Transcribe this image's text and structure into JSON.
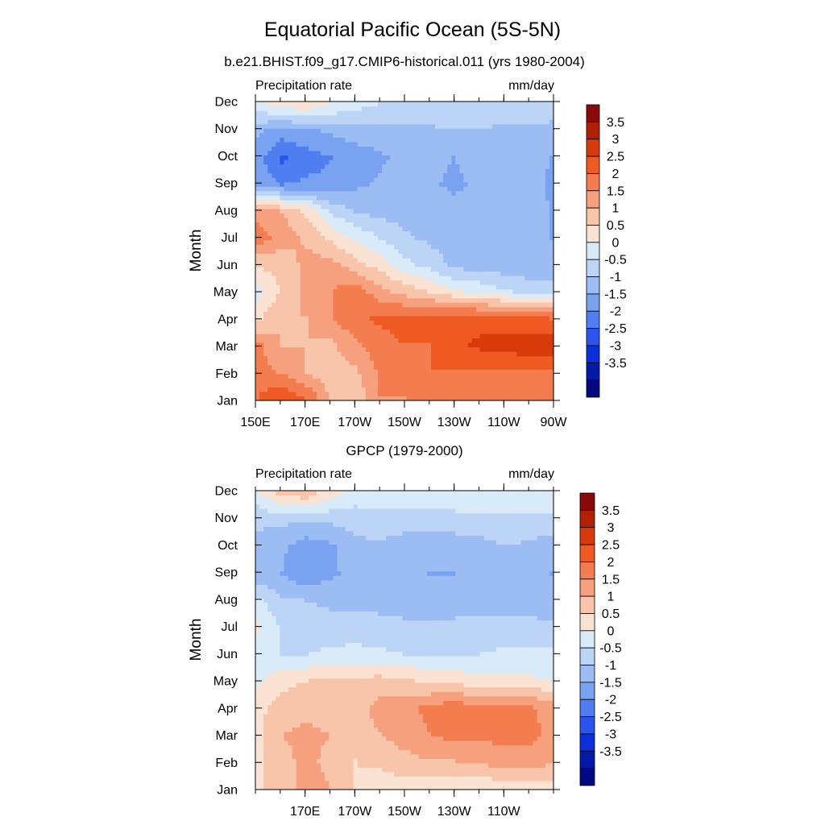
{
  "figure": {
    "title": "Equatorial Pacific Ocean (5S-5N)"
  },
  "colorbar": {
    "tick_labels": [
      "3.5",
      "3",
      "2.5",
      "2",
      "1.5",
      "1",
      "0.5",
      "0",
      "-0.5",
      "-1",
      "-1.5",
      "-2",
      "-2.5",
      "-3",
      "-3.5"
    ],
    "colors": [
      "#8a0a0a",
      "#b32105",
      "#d93a0b",
      "#ef5a22",
      "#f47d4f",
      "#f6a07e",
      "#f8c4aa",
      "#fbe3d3",
      "#d9eaf9",
      "#bcd4f6",
      "#9cbdf4",
      "#79a2f1",
      "#4f7ef0",
      "#2a55ec",
      "#0a2fdb",
      "#031aa8",
      "#010a80"
    ]
  },
  "chart_data": [
    {
      "type": "heatmap",
      "title": "b.e21.BHIST.f09_g17.CMIP6-historical.011 (yrs 1980-2004)",
      "left_label": "Precipitation rate",
      "right_label": "mm/day",
      "ylabel": "Month",
      "y_ticks": [
        "Jan",
        "Feb",
        "Mar",
        "Apr",
        "May",
        "Jun",
        "Jul",
        "Aug",
        "Sep",
        "Oct",
        "Nov",
        "Dec"
      ],
      "x_ticks": [
        "150E",
        "170E",
        "170W",
        "150W",
        "130W",
        "110W",
        "90W"
      ],
      "xlim": [
        150,
        270
      ],
      "x_grid": [
        150,
        160,
        170,
        180,
        190,
        200,
        210,
        220,
        230,
        240,
        250,
        260,
        270
      ],
      "z": [
        [
          2.0,
          2.5,
          2.0,
          1.0,
          0.6,
          1.5,
          1.5,
          1.6,
          1.6,
          1.6,
          1.8,
          1.8,
          1.6
        ],
        [
          1.8,
          1.4,
          1.0,
          0.6,
          0.9,
          1.6,
          2.0,
          2.0,
          2.0,
          2.0,
          2.0,
          2.0,
          2.0
        ],
        [
          1.6,
          1.0,
          1.0,
          0.9,
          1.4,
          1.8,
          2.0,
          2.0,
          2.4,
          2.6,
          2.7,
          2.8,
          2.8
        ],
        [
          0.4,
          1.0,
          1.0,
          1.5,
          1.9,
          2.1,
          2.2,
          2.2,
          2.3,
          2.3,
          2.2,
          2.1,
          2.0
        ],
        [
          -0.2,
          0.6,
          1.2,
          1.5,
          1.8,
          1.2,
          0.8,
          0.5,
          0.1,
          -0.1,
          -0.4,
          -0.6,
          -0.7
        ],
        [
          0.6,
          0.6,
          1.2,
          1.2,
          0.7,
          0.3,
          -0.3,
          -0.7,
          -1.1,
          -1.3,
          -1.3,
          -1.4,
          -1.4
        ],
        [
          1.8,
          1.3,
          0.9,
          0.4,
          -0.1,
          -0.5,
          -0.9,
          -1.1,
          -1.2,
          -1.3,
          -1.3,
          -1.4,
          -1.5
        ],
        [
          1.3,
          1.0,
          0.4,
          -0.6,
          -1.0,
          -1.2,
          -1.2,
          -1.3,
          -1.3,
          -1.4,
          -1.4,
          -1.3,
          -1.5
        ],
        [
          -1.6,
          -2.0,
          -1.9,
          -1.9,
          -1.6,
          -1.4,
          -1.3,
          -1.4,
          -1.6,
          -1.4,
          -1.3,
          -1.2,
          -1.6
        ],
        [
          -1.8,
          -2.6,
          -2.2,
          -2.0,
          -1.8,
          -1.6,
          -1.3,
          -1.3,
          -1.5,
          -1.3,
          -1.2,
          -1.3,
          -1.5
        ],
        [
          -1.4,
          -1.7,
          -1.6,
          -1.4,
          -1.2,
          -1.2,
          -1.1,
          -1.1,
          -1.0,
          -1.0,
          -1.1,
          -1.1,
          -1.2
        ],
        [
          -0.1,
          0.2,
          0.4,
          0.0,
          -0.3,
          -0.5,
          -0.5,
          -0.6,
          -0.6,
          -0.6,
          -0.7,
          -0.6,
          -0.6
        ]
      ]
    },
    {
      "type": "heatmap",
      "title": "GPCP (1979-2000)",
      "left_label": "Precipitation rate",
      "right_label": "mm/day",
      "ylabel": "Month",
      "y_ticks": [
        "Jan",
        "Feb",
        "Mar",
        "Apr",
        "May",
        "Jun",
        "Jul",
        "Aug",
        "Sep",
        "Oct",
        "Nov",
        "Dec"
      ],
      "x_ticks": [
        "170E",
        "170W",
        "150W",
        "130W",
        "110W"
      ],
      "xlim": [
        150,
        270
      ],
      "x_grid": [
        150,
        160,
        170,
        180,
        190,
        200,
        210,
        220,
        230,
        240,
        250,
        260,
        270
      ],
      "z": [
        [
          0.4,
          0.8,
          1.2,
          1.0,
          0.5,
          0.3,
          0.3,
          0.2,
          0.2,
          0.1,
          0.2,
          0.3,
          0.3
        ],
        [
          0.4,
          0.9,
          1.1,
          0.9,
          0.5,
          0.6,
          0.8,
          1.0,
          1.0,
          1.1,
          1.3,
          1.3,
          1.1
        ],
        [
          0.4,
          1.0,
          1.1,
          1.0,
          0.7,
          1.0,
          1.3,
          1.5,
          1.7,
          1.6,
          1.7,
          1.7,
          1.4
        ],
        [
          0.3,
          0.8,
          0.9,
          0.8,
          0.8,
          1.2,
          1.4,
          1.6,
          1.8,
          1.7,
          1.7,
          1.6,
          1.3
        ],
        [
          -0.1,
          0.3,
          0.5,
          0.6,
          0.6,
          0.7,
          0.6,
          0.4,
          0.3,
          0.2,
          0.1,
          0.1,
          0.0
        ],
        [
          -0.2,
          -0.5,
          -0.5,
          -0.4,
          -0.3,
          -0.4,
          -0.5,
          -0.5,
          -0.5,
          -0.5,
          -0.4,
          -0.4,
          -0.4
        ],
        [
          0.1,
          -0.6,
          -0.7,
          -0.8,
          -0.8,
          -0.9,
          -0.9,
          -0.9,
          -0.9,
          -0.9,
          -0.9,
          -0.9,
          -0.9
        ],
        [
          -0.4,
          -0.9,
          -1.0,
          -1.1,
          -1.1,
          -1.1,
          -1.2,
          -1.2,
          -1.2,
          -1.1,
          -1.1,
          -1.1,
          -1.3
        ],
        [
          -1.3,
          -1.5,
          -1.9,
          -1.6,
          -1.3,
          -1.2,
          -1.4,
          -1.5,
          -1.5,
          -1.4,
          -1.1,
          -1.1,
          -1.5
        ],
        [
          -1.1,
          -1.4,
          -1.8,
          -1.6,
          -1.2,
          -1.1,
          -1.4,
          -1.4,
          -1.4,
          -1.3,
          -1.0,
          -1.1,
          -1.3
        ],
        [
          -0.9,
          -0.9,
          -0.9,
          -0.9,
          -0.7,
          -0.6,
          -0.6,
          -0.6,
          -0.6,
          -0.6,
          -0.6,
          -0.6,
          -0.6
        ],
        [
          -0.1,
          0.7,
          0.8,
          0.2,
          -0.3,
          -0.3,
          -0.3,
          -0.3,
          -0.3,
          -0.2,
          -0.2,
          -0.2,
          -0.2
        ]
      ]
    }
  ]
}
